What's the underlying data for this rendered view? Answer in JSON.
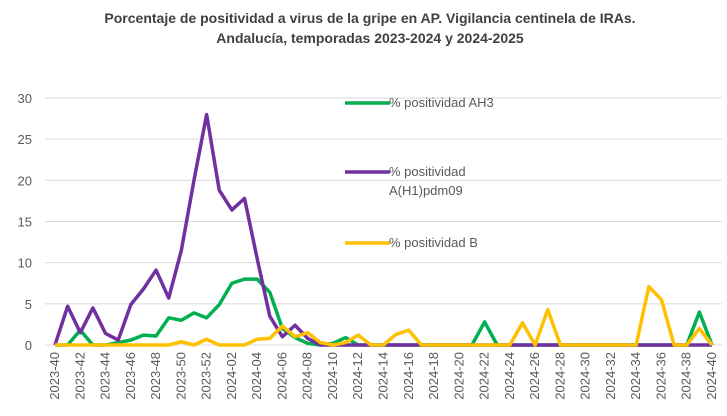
{
  "chart_data": {
    "type": "line",
    "title": "Porcentaje de positividad a virus de la gripe en AP. Vigilancia centinela de IRAs. Andalucía, temporadas 2023-2024 y 2024-2025",
    "categories": [
      "2023-40",
      null,
      "2023-42",
      null,
      "2023-44",
      null,
      "2023-46",
      null,
      "2023-48",
      null,
      "2023-50",
      null,
      "2023-52",
      null,
      "2024-02",
      null,
      "2024-04",
      null,
      "2024-06",
      null,
      "2024-08",
      null,
      "2024-10",
      null,
      "2024-12",
      null,
      "2024-14",
      null,
      "2024-16",
      null,
      "2024-18",
      null,
      "2024-20",
      null,
      "2024-22",
      null,
      "2024-24",
      null,
      "2024-26",
      null,
      "2024-28",
      null,
      "2024-30",
      null,
      "2024-32",
      null,
      "2024-34",
      null,
      "2024-36",
      null,
      "2024-38",
      null,
      "2024-40"
    ],
    "series": [
      {
        "name": "% positividad AH3",
        "color": "#00b050",
        "values": [
          0,
          0,
          1.8,
          0,
          0,
          0.3,
          0.6,
          1.2,
          1.1,
          3.3,
          3.0,
          3.9,
          3.3,
          4.9,
          7.5,
          8.0,
          8.0,
          6.4,
          2.0,
          0.9,
          0.2,
          0,
          0.2,
          0.9,
          0,
          0,
          0,
          0,
          0,
          0,
          0,
          0,
          0,
          0,
          2.8,
          0,
          0,
          0,
          0,
          0,
          0,
          0,
          0,
          0,
          0,
          0,
          0,
          0,
          0,
          0,
          0,
          4,
          0
        ]
      },
      {
        "name": "% positividad A(H1)pdm09",
        "color": "#7030a0",
        "values": [
          0,
          4.7,
          1.5,
          4.5,
          1.4,
          0.6,
          4.9,
          6.8,
          9.1,
          5.7,
          11.5,
          20,
          28,
          18.8,
          16.4,
          17.8,
          10.5,
          3.5,
          1.0,
          2.4,
          0.8,
          0,
          0,
          0,
          0,
          0,
          0,
          0,
          0,
          0,
          0,
          0,
          0,
          0,
          0,
          0,
          0,
          0,
          0,
          0,
          0,
          0,
          0,
          0,
          0,
          0,
          0,
          0,
          0,
          0,
          0,
          0,
          0
        ]
      },
      {
        "name": "% positividad B",
        "color": "#ffc000",
        "values": [
          0,
          0,
          0,
          0,
          0,
          0,
          0,
          0,
          0,
          0,
          0.4,
          0,
          0.7,
          0,
          0,
          0,
          0.7,
          0.8,
          2.3,
          1.0,
          1.5,
          0.3,
          0,
          0.3,
          1.2,
          0,
          0,
          1.3,
          1.8,
          0,
          0,
          0,
          0,
          0,
          0,
          0,
          0,
          2.7,
          0,
          4.3,
          0,
          0,
          0,
          0,
          0,
          0,
          0,
          7.1,
          5.5,
          0,
          0,
          2,
          0
        ]
      }
    ],
    "ylim": [
      0,
      30
    ],
    "yticks": [
      0,
      5,
      10,
      15,
      20,
      25,
      30
    ],
    "grid": true
  }
}
